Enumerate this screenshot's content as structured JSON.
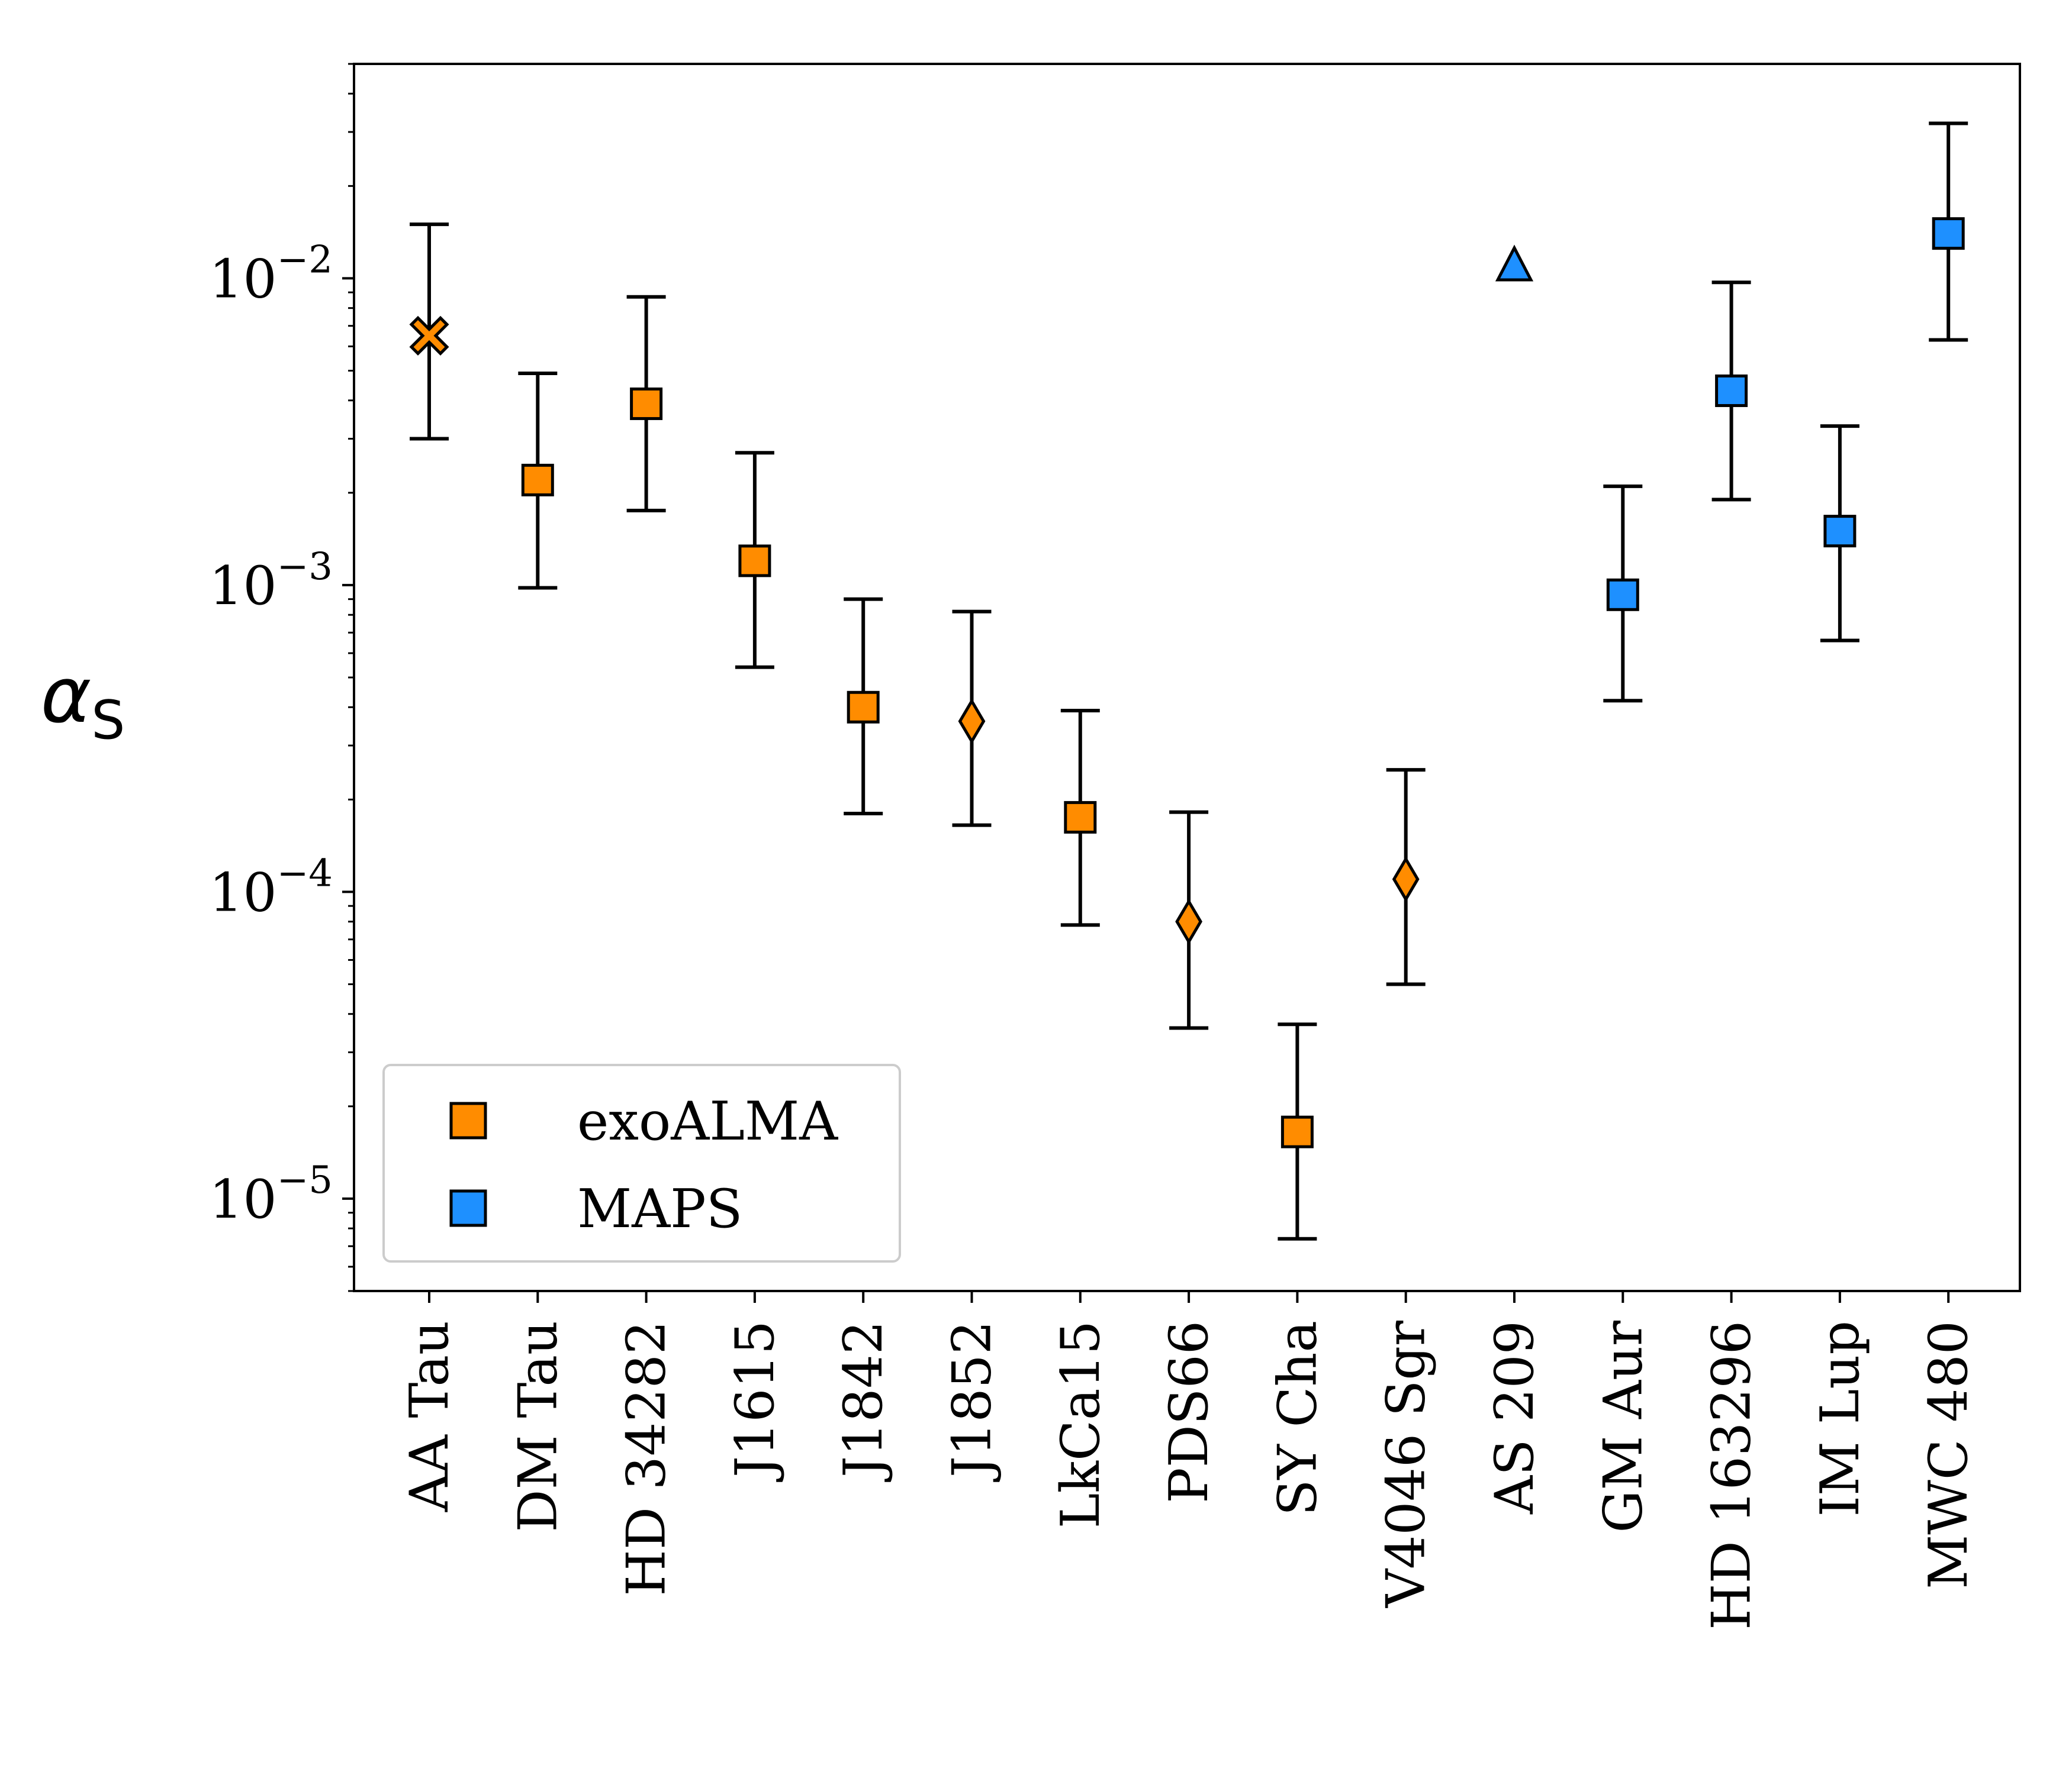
{
  "chart_data": {
    "type": "scatter",
    "y_scale": "log",
    "ylim": [
      5e-06,
      0.05
    ],
    "ylabel": "α_S",
    "y_tick_labels": [
      {
        "base": "10",
        "exp": "−2",
        "value": 0.01
      },
      {
        "base": "10",
        "exp": "−3",
        "value": 0.001
      },
      {
        "base": "10",
        "exp": "−4",
        "value": 0.0001
      },
      {
        "base": "10",
        "exp": "−5",
        "value": 1e-05
      }
    ],
    "grid": false,
    "legend_placement": "lower-left",
    "categories": [
      "AA Tau",
      "DM Tau",
      "HD 34282",
      "J1615",
      "J1842",
      "J1852",
      "LkCa15",
      "PDS66",
      "SY Cha",
      "V4046 Sgr",
      "AS 209",
      "GM Aur",
      "HD 163296",
      "IM Lup",
      "MWC 480"
    ],
    "series": [
      {
        "name": "exoALMA",
        "color": "#FF8C00",
        "points": [
          {
            "category": "AA Tau",
            "y": 0.0065,
            "yerr_low": 0.003,
            "yerr_high": 0.015,
            "marker": "x"
          },
          {
            "category": "DM Tau",
            "y": 0.0022,
            "yerr_low": 0.00098,
            "yerr_high": 0.0049,
            "marker": "square"
          },
          {
            "category": "HD 34282",
            "y": 0.0039,
            "yerr_low": 0.00175,
            "yerr_high": 0.0087,
            "marker": "square"
          },
          {
            "category": "J1615",
            "y": 0.0012,
            "yerr_low": 0.00054,
            "yerr_high": 0.0027,
            "marker": "square"
          },
          {
            "category": "J1842",
            "y": 0.0004,
            "yerr_low": 0.00018,
            "yerr_high": 0.0009,
            "marker": "square"
          },
          {
            "category": "J1852",
            "y": 0.00036,
            "yerr_low": 0.000165,
            "yerr_high": 0.00082,
            "marker": "diamond"
          },
          {
            "category": "LkCa15",
            "y": 0.000175,
            "yerr_low": 7.8e-05,
            "yerr_high": 0.00039,
            "marker": "square"
          },
          {
            "category": "PDS66",
            "y": 8e-05,
            "yerr_low": 3.6e-05,
            "yerr_high": 0.000182,
            "marker": "diamond"
          },
          {
            "category": "SY Cha",
            "y": 1.65e-05,
            "yerr_low": 7.4e-06,
            "yerr_high": 3.7e-05,
            "marker": "square"
          },
          {
            "category": "V4046 Sgr",
            "y": 0.00011,
            "yerr_low": 5e-05,
            "yerr_high": 0.00025,
            "marker": "diamond"
          }
        ]
      },
      {
        "name": "MAPS",
        "color": "#1E90FF",
        "points": [
          {
            "category": "AS 209",
            "y": 0.011,
            "marker": "triangle"
          },
          {
            "category": "GM Aur",
            "y": 0.00093,
            "yerr_low": 0.00042,
            "yerr_high": 0.0021,
            "marker": "square"
          },
          {
            "category": "HD 163296",
            "y": 0.0043,
            "yerr_low": 0.0019,
            "yerr_high": 0.0097,
            "marker": "square"
          },
          {
            "category": "IM Lup",
            "y": 0.0015,
            "yerr_low": 0.00066,
            "yerr_high": 0.0033,
            "marker": "square"
          },
          {
            "category": "MWC 480",
            "y": 0.014,
            "yerr_low": 0.0063,
            "yerr_high": 0.032,
            "marker": "square"
          }
        ]
      }
    ]
  }
}
